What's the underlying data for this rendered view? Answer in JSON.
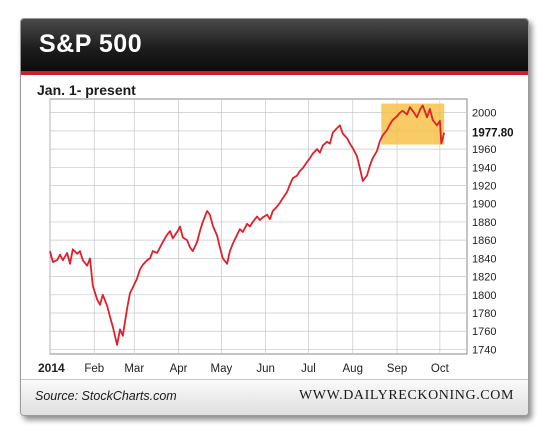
{
  "header": {
    "title": "S&P 500"
  },
  "subtitle": "Jan. 1- present",
  "footer": {
    "source": "Source: StockCharts.com",
    "site": "WWW.DAILYRECKONING.COM"
  },
  "colors": {
    "line": "#e0202a",
    "highlight": "#f6c043",
    "header": "#1e1e1e",
    "accent": "#c8202c",
    "grid": "#c8c8c8"
  },
  "chart_data": {
    "type": "line",
    "title": "S&P 500",
    "subtitle": "Jan. 1- present",
    "ylim": [
      1735,
      2015
    ],
    "yticks": [
      1740,
      1760,
      1780,
      1800,
      1820,
      1840,
      1860,
      1880,
      1900,
      1920,
      1940,
      1960,
      1980,
      2000
    ],
    "ytick_labels": [
      "1740",
      "1760",
      "1780",
      "1800",
      "1820",
      "1840",
      "1860",
      "1880",
      "1900",
      "1920",
      "1940",
      "1960",
      "",
      "2000"
    ],
    "xlim": [
      "2014-01-01",
      "2014-10-20"
    ],
    "xticks": [
      {
        "date": "2014-01-01",
        "label": "2014"
      },
      {
        "date": "2014-02-01",
        "label": "Feb"
      },
      {
        "date": "2014-03-01",
        "label": "Mar"
      },
      {
        "date": "2014-04-01",
        "label": "Apr"
      },
      {
        "date": "2014-05-01",
        "label": "May"
      },
      {
        "date": "2014-06-01",
        "label": "Jun"
      },
      {
        "date": "2014-07-01",
        "label": "Jul"
      },
      {
        "date": "2014-08-01",
        "label": "Aug"
      },
      {
        "date": "2014-09-01",
        "label": "Sep"
      },
      {
        "date": "2014-10-01",
        "label": "Oct"
      }
    ],
    "last_value_label": "1977.80",
    "grid": true,
    "highlight": {
      "x": [
        "2014-08-21",
        "2014-10-04"
      ],
      "y": [
        1965,
        2010
      ]
    },
    "series": [
      {
        "x": [
          "2014-01-01",
          "2014-01-02",
          "2014-01-03",
          "2014-01-06",
          "2014-01-08",
          "2014-01-10",
          "2014-01-13",
          "2014-01-15",
          "2014-01-17",
          "2014-01-20",
          "2014-01-22",
          "2014-01-24",
          "2014-01-27",
          "2014-01-29",
          "2014-01-31",
          "2014-02-03",
          "2014-02-05",
          "2014-02-07",
          "2014-02-10",
          "2014-02-12",
          "2014-02-14",
          "2014-02-17",
          "2014-02-19",
          "2014-02-21",
          "2014-02-24",
          "2014-02-26",
          "2014-02-28",
          "2014-03-03",
          "2014-03-05",
          "2014-03-07",
          "2014-03-10",
          "2014-03-12",
          "2014-03-14",
          "2014-03-17",
          "2014-03-19",
          "2014-03-21",
          "2014-03-24",
          "2014-03-26",
          "2014-03-28",
          "2014-03-31",
          "2014-04-02",
          "2014-04-04",
          "2014-04-07",
          "2014-04-09",
          "2014-04-11",
          "2014-04-14",
          "2014-04-16",
          "2014-04-18",
          "2014-04-21",
          "2014-04-23",
          "2014-04-25",
          "2014-04-28",
          "2014-04-30",
          "2014-05-02",
          "2014-05-05",
          "2014-05-07",
          "2014-05-09",
          "2014-05-12",
          "2014-05-14",
          "2014-05-16",
          "2014-05-19",
          "2014-05-21",
          "2014-05-23",
          "2014-05-26",
          "2014-05-28",
          "2014-05-30",
          "2014-06-02",
          "2014-06-04",
          "2014-06-06",
          "2014-06-09",
          "2014-06-11",
          "2014-06-13",
          "2014-06-16",
          "2014-06-18",
          "2014-06-20",
          "2014-06-23",
          "2014-06-25",
          "2014-06-27",
          "2014-06-30",
          "2014-07-02",
          "2014-07-04",
          "2014-07-07",
          "2014-07-09",
          "2014-07-11",
          "2014-07-14",
          "2014-07-16",
          "2014-07-18",
          "2014-07-21",
          "2014-07-23",
          "2014-07-25",
          "2014-07-28",
          "2014-07-30",
          "2014-08-01",
          "2014-08-04",
          "2014-08-06",
          "2014-08-08",
          "2014-08-11",
          "2014-08-13",
          "2014-08-15",
          "2014-08-18",
          "2014-08-20",
          "2014-08-22",
          "2014-08-25",
          "2014-08-27",
          "2014-08-29",
          "2014-09-01",
          "2014-09-03",
          "2014-09-05",
          "2014-09-08",
          "2014-09-10",
          "2014-09-12",
          "2014-09-15",
          "2014-09-17",
          "2014-09-19",
          "2014-09-22",
          "2014-09-24",
          "2014-09-26",
          "2014-09-29",
          "2014-10-01",
          "2014-10-02",
          "2014-10-04"
        ],
        "y": [
          1848,
          1842,
          1836,
          1838,
          1844,
          1838,
          1846,
          1834,
          1850,
          1845,
          1848,
          1838,
          1832,
          1840,
          1810,
          1795,
          1789,
          1800,
          1788,
          1776,
          1765,
          1745,
          1762,
          1755,
          1785,
          1802,
          1808,
          1818,
          1828,
          1833,
          1838,
          1840,
          1848,
          1846,
          1852,
          1858,
          1866,
          1870,
          1862,
          1869,
          1875,
          1863,
          1860,
          1852,
          1848,
          1858,
          1870,
          1880,
          1892,
          1888,
          1876,
          1865,
          1852,
          1840,
          1834,
          1848,
          1856,
          1866,
          1872,
          1869,
          1878,
          1875,
          1880,
          1886,
          1882,
          1885,
          1888,
          1883,
          1892,
          1897,
          1901,
          1906,
          1913,
          1921,
          1928,
          1931,
          1936,
          1939,
          1946,
          1950,
          1955,
          1960,
          1956,
          1964,
          1968,
          1966,
          1978,
          1983,
          1986,
          1977,
          1972,
          1966,
          1961,
          1952,
          1939,
          1925,
          1931,
          1942,
          1950,
          1958,
          1969,
          1975,
          1981,
          1987,
          1992,
          1996,
          2000,
          2002,
          1998,
          2006,
          2002,
          1995,
          2003,
          2008,
          1995,
          2004,
          1992,
          1986,
          1991,
          1966,
          1978
        ]
      }
    ]
  }
}
